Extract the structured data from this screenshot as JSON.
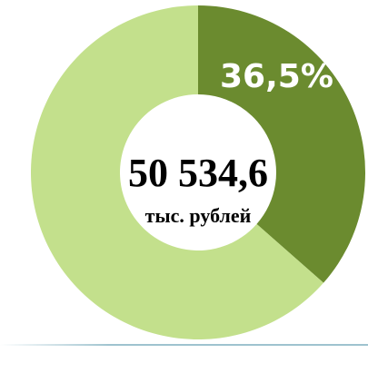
{
  "chart_data": {
    "type": "donut",
    "center_value": "50 534,6",
    "center_label": "тыс. рублей",
    "values": [
      36.5,
      63.5
    ],
    "value_labels": [
      "36,5%",
      null
    ],
    "colors": [
      "#6b8b2f",
      "#c3e08c"
    ]
  }
}
